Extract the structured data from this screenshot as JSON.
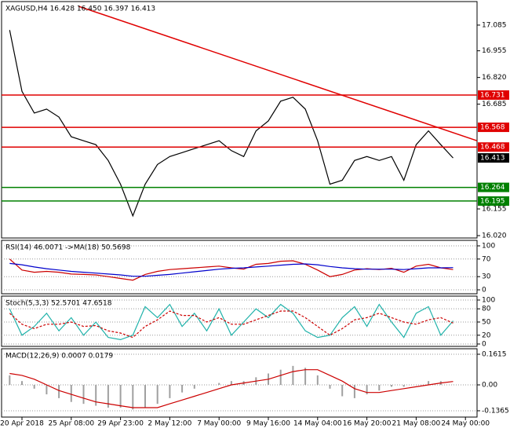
{
  "chart_data": [
    {
      "type": "line",
      "title": "XAGUSD,H4  16.428 16.450 16.397 16.413",
      "categories": [
        null,
        "20 Apr 2018",
        null,
        null,
        null,
        "25 Apr 08:00",
        null,
        null,
        null,
        "29 Apr 23:00",
        null,
        null,
        null,
        "2 May 12:00",
        null,
        null,
        null,
        "7 May 00:00",
        null,
        null,
        null,
        "9 May 16:00",
        null,
        null,
        null,
        "14 May 04:00",
        null,
        null,
        null,
        "16 May 20:00",
        null,
        null,
        null,
        "21 May 08:00",
        null,
        null,
        null,
        "24 May 00:00"
      ],
      "series": [
        {
          "color": "#000000",
          "values": [
            17.06,
            16.75,
            16.64,
            16.66,
            16.62,
            16.52,
            16.5,
            16.48,
            16.4,
            16.28,
            16.12,
            16.28,
            16.38,
            16.42,
            16.44,
            16.46,
            16.48,
            16.5,
            16.45,
            16.42,
            16.55,
            16.6,
            16.7,
            16.72,
            16.66,
            16.5,
            16.28,
            16.3,
            16.4,
            16.42,
            16.4,
            16.42,
            16.3,
            16.48,
            16.55,
            16.48,
            16.413,
            null
          ]
        }
      ],
      "trendline": {
        "color": "#e00000",
        "x": [
          5.6,
          38
        ],
        "values": [
          17.18,
          16.5
        ]
      },
      "levels": [
        {
          "value": 16.731,
          "color": "#e00000"
        },
        {
          "value": 16.568,
          "color": "#e00000"
        },
        {
          "value": 16.468,
          "color": "#e00000"
        },
        {
          "value": 16.264,
          "color": "#008000"
        },
        {
          "value": 16.195,
          "color": "#008000"
        }
      ],
      "ylim": [
        16.008,
        17.204
      ],
      "yticks": [
        17.085,
        16.955,
        {
          "value": 16.82,
          "label": "16.820"
        },
        16.685,
        16.155,
        {
          "value": 16.02,
          "label": "16.020"
        }
      ]
    },
    {
      "type": "line",
      "title": "RSI(14) 46.0071  ->MA(18) 50.5698",
      "series": [
        {
          "color": "#cc0000",
          "values": [
            70,
            45,
            40,
            42,
            40,
            36,
            35,
            34,
            30,
            26,
            22,
            35,
            42,
            46,
            48,
            50,
            52,
            54,
            50,
            47,
            58,
            60,
            65,
            66,
            58,
            45,
            30,
            35,
            45,
            48,
            46,
            49,
            40,
            54,
            58,
            50,
            46.0071,
            null
          ]
        },
        {
          "color": "#0000cc",
          "values": [
            60,
            57,
            52,
            48,
            45,
            42,
            40,
            38,
            36,
            34,
            31,
            31,
            33,
            35,
            38,
            41,
            44,
            47,
            49,
            50,
            52,
            54,
            56,
            58,
            59,
            57,
            53,
            50,
            48,
            47,
            47,
            47,
            46,
            48,
            50,
            50,
            50.5698,
            null
          ]
        }
      ],
      "ylim": [
        -8.9,
        112.5
      ],
      "yticks": [
        100,
        70,
        30,
        0
      ]
    },
    {
      "type": "line",
      "title": "Stoch(5,3,3) 52.5701 47.6518",
      "series": [
        {
          "color": "#20b2aa",
          "values": [
            80,
            20,
            40,
            70,
            30,
            60,
            20,
            50,
            15,
            10,
            20,
            85,
            60,
            90,
            40,
            70,
            30,
            80,
            20,
            50,
            80,
            60,
            90,
            70,
            30,
            15,
            20,
            60,
            85,
            40,
            90,
            50,
            15,
            70,
            85,
            20,
            52.5701,
            null
          ]
        },
        {
          "color": "#cc0000",
          "dashed": true,
          "values": [
            70,
            45,
            35,
            45,
            45,
            50,
            40,
            42,
            30,
            25,
            15,
            40,
            55,
            75,
            65,
            65,
            50,
            60,
            45,
            45,
            55,
            65,
            75,
            75,
            60,
            40,
            20,
            35,
            55,
            60,
            70,
            60,
            50,
            45,
            55,
            60,
            47.6518,
            null
          ]
        }
      ],
      "ylim": [
        -5.4,
        108.9
      ],
      "yticks": [
        100,
        80,
        50,
        20,
        0
      ]
    },
    {
      "type": "line",
      "title": "MACD(12,26,9) 0.0007 0.0179",
      "series": [
        {
          "color": "#a0a0a0",
          "histogram": true,
          "values": [
            0.05,
            0.02,
            -0.02,
            -0.05,
            -0.07,
            -0.09,
            -0.1,
            -0.11,
            -0.12,
            -0.12,
            -0.13,
            -0.12,
            -0.1,
            -0.07,
            -0.04,
            -0.02,
            0,
            0.01,
            0.02,
            0.02,
            0.04,
            0.06,
            0.08,
            0.1,
            0.09,
            0.05,
            -0.02,
            -0.06,
            -0.07,
            -0.05,
            -0.03,
            -0.01,
            -0.01,
            0,
            0.02,
            0.02,
            0.0007,
            null
          ]
        },
        {
          "color": "#cc0000",
          "values": [
            0.06,
            0.05,
            0.03,
            0,
            -0.03,
            -0.05,
            -0.07,
            -0.09,
            -0.1,
            -0.11,
            -0.12,
            -0.12,
            -0.12,
            -0.1,
            -0.08,
            -0.06,
            -0.04,
            -0.02,
            0,
            0.01,
            0.02,
            0.03,
            0.05,
            0.07,
            0.08,
            0.08,
            0.05,
            0.02,
            -0.02,
            -0.04,
            -0.04,
            -0.03,
            -0.02,
            -0.01,
            0,
            0.01,
            0.0179,
            null
          ]
        }
      ],
      "ylim": [
        -0.1698,
        0.1905
      ],
      "yticks": [
        0.1615,
        {
          "value": 0,
          "label": "0.00"
        },
        -0.1365
      ]
    }
  ]
}
